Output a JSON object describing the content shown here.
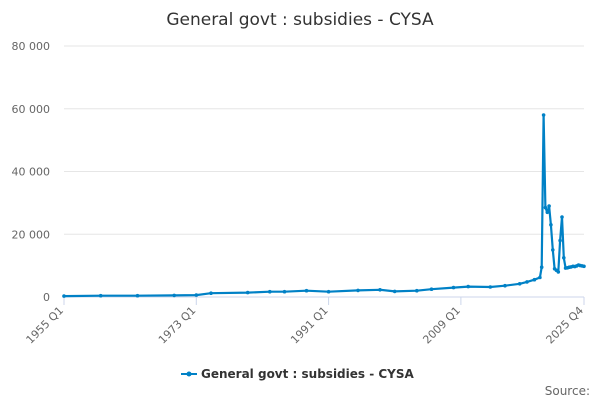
{
  "chart_data": {
    "type": "line",
    "title": "General govt : subsidies - CYSA",
    "xlabel": "",
    "ylabel": "",
    "ylim": [
      0,
      80000
    ],
    "yticks": [
      0,
      20000,
      40000,
      60000,
      80000
    ],
    "ytick_labels": [
      "0",
      "20 000",
      "40 000",
      "60 000",
      "80 000"
    ],
    "xlim": [
      "1955 Q1",
      "2025 Q4"
    ],
    "xticks": [
      "1955 Q1",
      "1973 Q1",
      "1991 Q1",
      "2009 Q1",
      "2025 Q4"
    ],
    "grid": true,
    "legend": "bottom-center",
    "series": [
      {
        "name": "General govt : subsidies - CYSA",
        "color": "#0081c6",
        "x": [
          "1955 Q1",
          "1960 Q1",
          "1965 Q1",
          "1970 Q1",
          "1973 Q1",
          "1975 Q1",
          "1980 Q1",
          "1983 Q1",
          "1985 Q1",
          "1988 Q1",
          "1991 Q1",
          "1995 Q1",
          "1998 Q1",
          "2000 Q1",
          "2003 Q1",
          "2005 Q1",
          "2008 Q1",
          "2010 Q1",
          "2013 Q1",
          "2015 Q1",
          "2017 Q1",
          "2018 Q1",
          "2019 Q1",
          "2019 Q4",
          "2020 Q1",
          "2020 Q2",
          "2020 Q3",
          "2020 Q4",
          "2021 Q1",
          "2021 Q2",
          "2021 Q3",
          "2021 Q4",
          "2022 Q1",
          "2022 Q2",
          "2022 Q3",
          "2022 Q4",
          "2023 Q1",
          "2023 Q2",
          "2023 Q3",
          "2023 Q4",
          "2024 Q1",
          "2024 Q2",
          "2024 Q3",
          "2024 Q4",
          "2025 Q1",
          "2025 Q2",
          "2025 Q3",
          "2025 Q4"
        ],
        "values": [
          300,
          400,
          400,
          500,
          600,
          1200,
          1400,
          1700,
          1700,
          2000,
          1700,
          2100,
          2300,
          1800,
          2000,
          2500,
          3000,
          3300,
          3200,
          3600,
          4200,
          4800,
          5500,
          6200,
          9500,
          58000,
          28500,
          27000,
          29000,
          23000,
          15000,
          9000,
          8500,
          8000,
          18000,
          25500,
          12500,
          9200,
          9300,
          9500,
          9600,
          9800,
          9700,
          9900,
          10200,
          10000,
          9900,
          9800
        ]
      }
    ],
    "source": "Source:"
  }
}
